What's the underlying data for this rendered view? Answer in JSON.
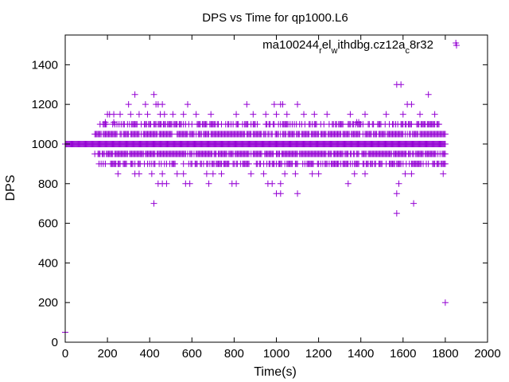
{
  "chart_data": {
    "type": "scatter",
    "title": "DPS vs Time for qp1000.L6",
    "xlabel": "Time(s)",
    "ylabel": "DPS",
    "xlim": [
      0,
      2000
    ],
    "ylim": [
      0,
      1550
    ],
    "xticks": [
      0,
      200,
      400,
      600,
      800,
      1000,
      1200,
      1400,
      1600,
      1800,
      2000
    ],
    "yticks": [
      0,
      200,
      400,
      600,
      800,
      1000,
      1200,
      1400
    ],
    "grid": false,
    "marker": "plus",
    "color": "#9400d3",
    "legend": {
      "parts": [
        {
          "text": "ma100244",
          "sub": false
        },
        {
          "text": "r",
          "sub": true
        },
        {
          "text": "el",
          "sub": false
        },
        {
          "text": "w",
          "sub": true
        },
        {
          "text": "ithdbg.cz12a",
          "sub": false
        },
        {
          "text": "c",
          "sub": true
        },
        {
          "text": "8r32",
          "sub": false
        }
      ],
      "position": "top-right"
    },
    "series": [
      {
        "name": "ma100244_rel_withdbg.cz12a_c8r32",
        "baseline": {
          "y": 1000,
          "x_start": 0,
          "x_end": 1800
        },
        "bands": [
          {
            "y": 1050,
            "x_start": 140,
            "x_end": 1800
          },
          {
            "y": 950,
            "x_start": 140,
            "x_end": 1800
          },
          {
            "y": 1100,
            "x_start": 160,
            "x_end": 1800
          },
          {
            "y": 900,
            "x_start": 160,
            "x_end": 1800
          }
        ],
        "points": [
          [
            0,
            50
          ],
          [
            1800,
            200
          ],
          [
            1850,
            1510
          ],
          [
            190,
            1110
          ],
          [
            230,
            1110
          ],
          [
            1380,
            1110
          ],
          [
            1390,
            1110
          ],
          [
            300,
            1200
          ],
          [
            330,
            1250
          ],
          [
            380,
            1200
          ],
          [
            420,
            1250
          ],
          [
            430,
            1200
          ],
          [
            440,
            1200
          ],
          [
            460,
            1200
          ],
          [
            580,
            1200
          ],
          [
            860,
            1200
          ],
          [
            990,
            1200
          ],
          [
            1020,
            1200
          ],
          [
            1030,
            1200
          ],
          [
            1100,
            1200
          ],
          [
            1620,
            1200
          ],
          [
            1640,
            1200
          ],
          [
            1720,
            1250
          ],
          [
            1570,
            1300
          ],
          [
            1590,
            1300
          ],
          [
            200,
            1150
          ],
          [
            210,
            1150
          ],
          [
            230,
            1150
          ],
          [
            260,
            1150
          ],
          [
            310,
            1150
          ],
          [
            350,
            1150
          ],
          [
            390,
            1150
          ],
          [
            450,
            1150
          ],
          [
            470,
            1150
          ],
          [
            510,
            1150
          ],
          [
            560,
            1150
          ],
          [
            620,
            1150
          ],
          [
            690,
            1150
          ],
          [
            810,
            1150
          ],
          [
            890,
            1150
          ],
          [
            950,
            1150
          ],
          [
            1000,
            1150
          ],
          [
            1050,
            1150
          ],
          [
            1130,
            1150
          ],
          [
            1180,
            1150
          ],
          [
            1240,
            1150
          ],
          [
            1350,
            1150
          ],
          [
            1420,
            1150
          ],
          [
            1520,
            1150
          ],
          [
            1600,
            1150
          ],
          [
            1680,
            1150
          ],
          [
            1750,
            1150
          ],
          [
            250,
            850
          ],
          [
            330,
            850
          ],
          [
            350,
            850
          ],
          [
            410,
            850
          ],
          [
            460,
            850
          ],
          [
            530,
            850
          ],
          [
            560,
            850
          ],
          [
            670,
            850
          ],
          [
            700,
            850
          ],
          [
            740,
            850
          ],
          [
            880,
            850
          ],
          [
            940,
            850
          ],
          [
            1040,
            850
          ],
          [
            1090,
            850
          ],
          [
            1170,
            850
          ],
          [
            1200,
            850
          ],
          [
            1370,
            850
          ],
          [
            1420,
            850
          ],
          [
            1610,
            850
          ],
          [
            1640,
            850
          ],
          [
            1790,
            850
          ],
          [
            440,
            800
          ],
          [
            460,
            800
          ],
          [
            480,
            800
          ],
          [
            570,
            800
          ],
          [
            590,
            800
          ],
          [
            680,
            800
          ],
          [
            790,
            800
          ],
          [
            810,
            800
          ],
          [
            960,
            800
          ],
          [
            980,
            800
          ],
          [
            1020,
            800
          ],
          [
            1340,
            800
          ],
          [
            1580,
            800
          ],
          [
            1000,
            750
          ],
          [
            1020,
            750
          ],
          [
            1100,
            750
          ],
          [
            1570,
            750
          ],
          [
            420,
            700
          ],
          [
            1650,
            700
          ],
          [
            1570,
            650
          ]
        ]
      }
    ]
  }
}
